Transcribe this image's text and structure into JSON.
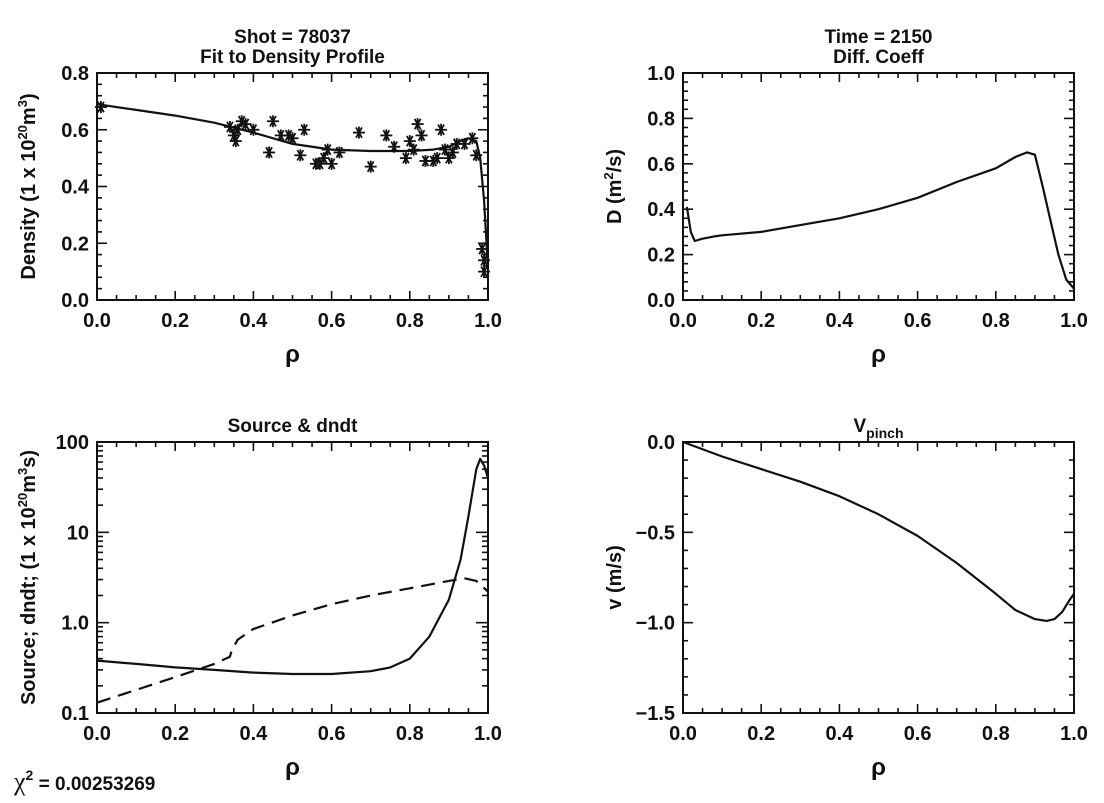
{
  "chart_data": [
    {
      "id": "p1",
      "type": "scatter",
      "title": [
        "Shot = 78037",
        "Fit to Density Profile"
      ],
      "xlabel": "ρ",
      "ylabel": {
        "base": "Density (1 x 10",
        "sup": "20",
        "mid": "m",
        "sup2": "3",
        "end": ")"
      },
      "xlim": [
        0,
        1
      ],
      "ylim": [
        0,
        0.8
      ],
      "yscale": "linear",
      "xticks": [
        "0.0",
        "0.2",
        "0.4",
        "0.6",
        "0.8",
        "1.0"
      ],
      "yticks": [
        "0.0",
        "0.2",
        "0.4",
        "0.6",
        "0.8"
      ],
      "series": [
        {
          "style": "solid",
          "x": [
            0,
            0.1,
            0.2,
            0.3,
            0.4,
            0.5,
            0.6,
            0.7,
            0.8,
            0.86,
            0.9,
            0.93,
            0.95,
            0.97,
            0.98,
            0.99,
            1.0
          ],
          "y": [
            0.69,
            0.67,
            0.65,
            0.625,
            0.59,
            0.55,
            0.53,
            0.525,
            0.525,
            0.53,
            0.54,
            0.56,
            0.57,
            0.56,
            0.5,
            0.35,
            0.11
          ]
        },
        {
          "style": "markers",
          "marker": "asterisk",
          "x": [
            0.01,
            0.34,
            0.35,
            0.355,
            0.36,
            0.38,
            0.37,
            0.4,
            0.44,
            0.45,
            0.47,
            0.49,
            0.5,
            0.52,
            0.53,
            0.56,
            0.57,
            0.58,
            0.59,
            0.6,
            0.62,
            0.67,
            0.7,
            0.74,
            0.76,
            0.79,
            0.8,
            0.81,
            0.82,
            0.83,
            0.84,
            0.86,
            0.87,
            0.88,
            0.89,
            0.9,
            0.91,
            0.92,
            0.94,
            0.96,
            0.97,
            0.985,
            0.99,
            0.99
          ],
          "y": [
            0.68,
            0.61,
            0.58,
            0.56,
            0.6,
            0.62,
            0.63,
            0.6,
            0.52,
            0.63,
            0.58,
            0.58,
            0.57,
            0.51,
            0.6,
            0.48,
            0.48,
            0.5,
            0.53,
            0.48,
            0.52,
            0.59,
            0.47,
            0.58,
            0.54,
            0.5,
            0.56,
            0.53,
            0.62,
            0.58,
            0.49,
            0.49,
            0.5,
            0.6,
            0.53,
            0.5,
            0.52,
            0.55,
            0.55,
            0.57,
            0.51,
            0.18,
            0.14,
            0.1
          ]
        }
      ]
    },
    {
      "id": "p2",
      "type": "line",
      "title": [
        "Time = 2150",
        "Diff. Coeff"
      ],
      "xlabel": "ρ",
      "ylabel": {
        "base": "D (m",
        "sup": "2",
        "mid": "/s)",
        "sup2": "",
        "end": ""
      },
      "xlim": [
        0,
        1
      ],
      "ylim": [
        0,
        1.0
      ],
      "yscale": "linear",
      "xticks": [
        "0.0",
        "0.2",
        "0.4",
        "0.6",
        "0.8",
        "1.0"
      ],
      "yticks": [
        "0.0",
        "0.2",
        "0.4",
        "0.6",
        "0.8",
        "1.0"
      ],
      "series": [
        {
          "style": "solid",
          "x": [
            0.01,
            0.02,
            0.03,
            0.05,
            0.08,
            0.1,
            0.2,
            0.3,
            0.4,
            0.5,
            0.6,
            0.7,
            0.8,
            0.85,
            0.88,
            0.9,
            0.92,
            0.94,
            0.96,
            0.98,
            1.0
          ],
          "y": [
            0.41,
            0.3,
            0.26,
            0.27,
            0.28,
            0.285,
            0.3,
            0.33,
            0.36,
            0.4,
            0.45,
            0.52,
            0.58,
            0.63,
            0.65,
            0.64,
            0.5,
            0.35,
            0.2,
            0.09,
            0.05
          ]
        }
      ]
    },
    {
      "id": "p3",
      "type": "line",
      "title": [
        "Source & dndt"
      ],
      "xlabel": "ρ",
      "ylabel": {
        "base": "Source;  dndt;  (1 x 10",
        "sup": "20",
        "mid": "m",
        "sup2": "3",
        "end": "s)"
      },
      "xlim": [
        0,
        1
      ],
      "ylim": [
        0.1,
        100
      ],
      "yscale": "log",
      "xticks": [
        "0.0",
        "0.2",
        "0.4",
        "0.6",
        "0.8",
        "1.0"
      ],
      "yticks": [
        {
          "v": 0.1,
          "label": "0.1"
        },
        {
          "v": 1,
          "label": "1.0"
        },
        {
          "v": 10,
          "label": "10"
        },
        {
          "v": 100,
          "label": "100"
        }
      ],
      "series": [
        {
          "style": "solid",
          "x": [
            0,
            0.1,
            0.2,
            0.3,
            0.4,
            0.5,
            0.6,
            0.7,
            0.75,
            0.8,
            0.85,
            0.9,
            0.93,
            0.95,
            0.97,
            0.98,
            0.99,
            1.0
          ],
          "y": [
            0.38,
            0.35,
            0.32,
            0.3,
            0.28,
            0.27,
            0.27,
            0.29,
            0.32,
            0.4,
            0.7,
            1.8,
            5,
            15,
            50,
            65,
            55,
            40
          ]
        },
        {
          "style": "dashed",
          "x": [
            0,
            0.1,
            0.2,
            0.3,
            0.34,
            0.345,
            0.36,
            0.4,
            0.5,
            0.6,
            0.7,
            0.8,
            0.9,
            0.94,
            0.97,
            1.0
          ],
          "y": [
            0.13,
            0.18,
            0.25,
            0.35,
            0.42,
            0.5,
            0.65,
            0.85,
            1.2,
            1.6,
            2.0,
            2.4,
            2.9,
            3.1,
            2.9,
            2.2
          ]
        }
      ]
    },
    {
      "id": "p4",
      "type": "line",
      "title": [
        "V",
        "pinch"
      ],
      "xlabel": "ρ",
      "ylabel": {
        "base": "v (m/s)",
        "sup": "",
        "mid": "",
        "sup2": "",
        "end": ""
      },
      "xlim": [
        0,
        1
      ],
      "ylim": [
        -1.5,
        0
      ],
      "yscale": "linear",
      "xticks": [
        "0.0",
        "0.2",
        "0.4",
        "0.6",
        "0.8",
        "1.0"
      ],
      "yticks": [
        "-1.5",
        "-1.0",
        "-0.5",
        "0.0"
      ],
      "series": [
        {
          "style": "solid",
          "x": [
            0,
            0.1,
            0.2,
            0.3,
            0.4,
            0.5,
            0.6,
            0.7,
            0.8,
            0.85,
            0.9,
            0.93,
            0.95,
            0.97,
            0.99,
            1.0
          ],
          "y": [
            0,
            -0.08,
            -0.15,
            -0.22,
            -0.3,
            -0.4,
            -0.52,
            -0.67,
            -0.84,
            -0.93,
            -0.98,
            -0.99,
            -0.98,
            -0.94,
            -0.87,
            -0.84
          ]
        }
      ]
    }
  ],
  "footer": {
    "chi_symbol": "χ",
    "chi_sup": "2",
    "chi_value": " = 0.00253269"
  }
}
